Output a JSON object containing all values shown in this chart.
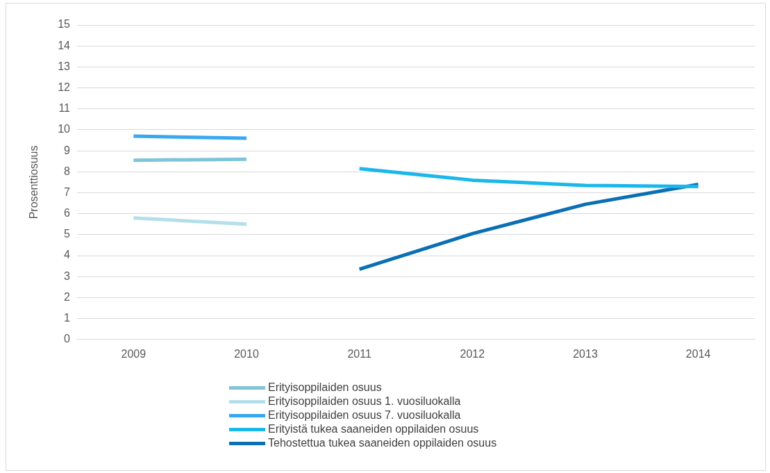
{
  "chart_data": {
    "type": "line",
    "ylabel": "Prosenttiosuus",
    "categories": [
      "2009",
      "2010",
      "2011",
      "2012",
      "2013",
      "2014"
    ],
    "series": [
      {
        "name": "Erityisoppilaiden osuus",
        "color": "#7fc4d8",
        "values": [
          8.55,
          8.6,
          null,
          null,
          null,
          null
        ]
      },
      {
        "name": "Erityisoppilaiden osuus 1. vuosiluokalla",
        "color": "#b4dfea",
        "values": [
          5.8,
          5.5,
          null,
          null,
          null,
          null
        ]
      },
      {
        "name": "Erityisoppilaiden osuus 7. vuosiluokalla",
        "color": "#3aa8f0",
        "values": [
          9.7,
          9.6,
          null,
          null,
          null,
          null
        ]
      },
      {
        "name": "Erityistä tukea saaneiden oppilaiden osuus",
        "color": "#1ab8ea",
        "values": [
          null,
          null,
          8.15,
          7.6,
          7.35,
          7.3
        ]
      },
      {
        "name": "Tehostettua tukea saaneiden oppilaiden osuus",
        "color": "#0a6fb5",
        "values": [
          null,
          null,
          3.35,
          5.05,
          6.45,
          7.4
        ]
      }
    ],
    "ylim": [
      0,
      15
    ],
    "yticks": [
      0,
      1,
      2,
      3,
      4,
      5,
      6,
      7,
      8,
      9,
      10,
      11,
      12,
      13,
      14,
      15
    ],
    "grid": "y",
    "legend": "bottom",
    "marker": "none",
    "line_style": "solid"
  }
}
